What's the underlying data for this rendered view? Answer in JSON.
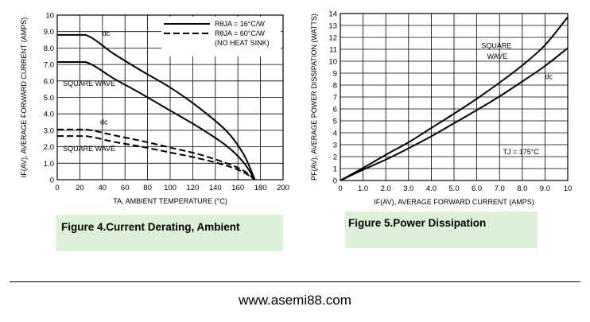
{
  "chart_data": [
    {
      "type": "line",
      "xlabel": "TA, AMBIENT TEMPERATURE (°C)",
      "ylabel": "IF(AV), AVERAGE FORWARD CURRENT (AMPS)",
      "xlim": [
        0,
        200
      ],
      "ylim": [
        0,
        10
      ],
      "xticks": [
        "0",
        "20",
        "40",
        "60",
        "80",
        "100",
        "120",
        "140",
        "160",
        "180",
        "200"
      ],
      "yticks": [
        "0",
        "1.0",
        "2.0",
        "3.0",
        "4.0",
        "5.0",
        "6.0",
        "7.0",
        "8.0",
        "9.0",
        "10"
      ],
      "grid": true,
      "legend_position": "top-right",
      "legend": [
        {
          "label": "RθJA = 16°C/W",
          "style": "solid"
        },
        {
          "label": "RθJA = 60°C/W",
          "style": "dashed"
        },
        {
          "label": "(NO HEAT SINK)",
          "style": "none"
        }
      ],
      "annotations": [
        {
          "text": "dc",
          "x": 40,
          "y": 8.75
        },
        {
          "text": "SQUARE WAVE",
          "x": 5,
          "y": 5.7
        },
        {
          "text": "dc",
          "x": 38,
          "y": 3.35
        },
        {
          "text": "SQUARE WAVE",
          "x": 5,
          "y": 1.75
        }
      ],
      "series": [
        {
          "style": "solid",
          "x": [
            0,
            25,
            50,
            75,
            100,
            125,
            150,
            165,
            175
          ],
          "y": [
            8.8,
            8.8,
            7.65,
            6.6,
            5.6,
            4.4,
            2.95,
            1.55,
            0
          ]
        },
        {
          "style": "solid",
          "x": [
            0,
            25,
            50,
            75,
            100,
            125,
            150,
            165,
            175
          ],
          "y": [
            7.15,
            7.15,
            6.15,
            5.2,
            4.2,
            3.2,
            2.05,
            1.05,
            0
          ]
        },
        {
          "style": "dashed",
          "x": [
            0,
            25,
            50,
            75,
            100,
            125,
            150,
            165,
            175
          ],
          "y": [
            3.05,
            3.05,
            2.7,
            2.35,
            1.95,
            1.55,
            1.0,
            0.55,
            0
          ]
        },
        {
          "style": "dashed",
          "x": [
            0,
            25,
            50,
            75,
            100,
            125,
            150,
            165,
            175
          ],
          "y": [
            2.65,
            2.65,
            2.3,
            2.0,
            1.65,
            1.3,
            0.85,
            0.45,
            0
          ]
        }
      ]
    },
    {
      "type": "line",
      "xlabel": "IF(AV), AVERAGE FORWARD CURRENT (AMPS)",
      "ylabel": "PF(AV), AVERAGE POWER DISSIPATION (WATTS)",
      "xlim": [
        0,
        10
      ],
      "ylim": [
        0,
        14
      ],
      "xticks": [
        "0",
        "1.0",
        "2.0",
        "3.0",
        "4.0",
        "5.0",
        "6.0",
        "7.0",
        "8.0",
        "9.0",
        "10"
      ],
      "yticks": [
        "0",
        "1",
        "2",
        "3",
        "4",
        "5",
        "6",
        "7",
        "8",
        "9",
        "10",
        "11",
        "12",
        "13",
        "14"
      ],
      "grid": true,
      "annotations": [
        {
          "text": "SQUARE",
          "x": 6.2,
          "y": 11.1
        },
        {
          "text": "WAVE",
          "x": 6.45,
          "y": 10.2
        },
        {
          "text": "dc",
          "x": 9.0,
          "y": 8.5
        },
        {
          "text": "TJ = 175°C",
          "x": 7.15,
          "y": 2.2
        }
      ],
      "series": [
        {
          "style": "solid",
          "x": [
            0,
            1,
            2,
            3,
            4,
            5,
            6,
            7,
            8,
            9,
            10
          ],
          "y": [
            0,
            1.05,
            2.15,
            3.2,
            4.4,
            5.6,
            6.85,
            8.2,
            9.65,
            11.35,
            13.7
          ]
        },
        {
          "style": "solid",
          "x": [
            0,
            1,
            2,
            3,
            4,
            5,
            6,
            7,
            8,
            9,
            10
          ],
          "y": [
            0,
            0.9,
            1.75,
            2.7,
            3.7,
            4.8,
            5.9,
            7.05,
            8.3,
            9.6,
            11.1
          ]
        }
      ]
    }
  ],
  "captions": {
    "fig4": "Figure 4.Current  Derating, Ambient",
    "fig5": "Figure 5.Power  Dissipation"
  },
  "footer": {
    "url": "www.asemi88.com"
  }
}
